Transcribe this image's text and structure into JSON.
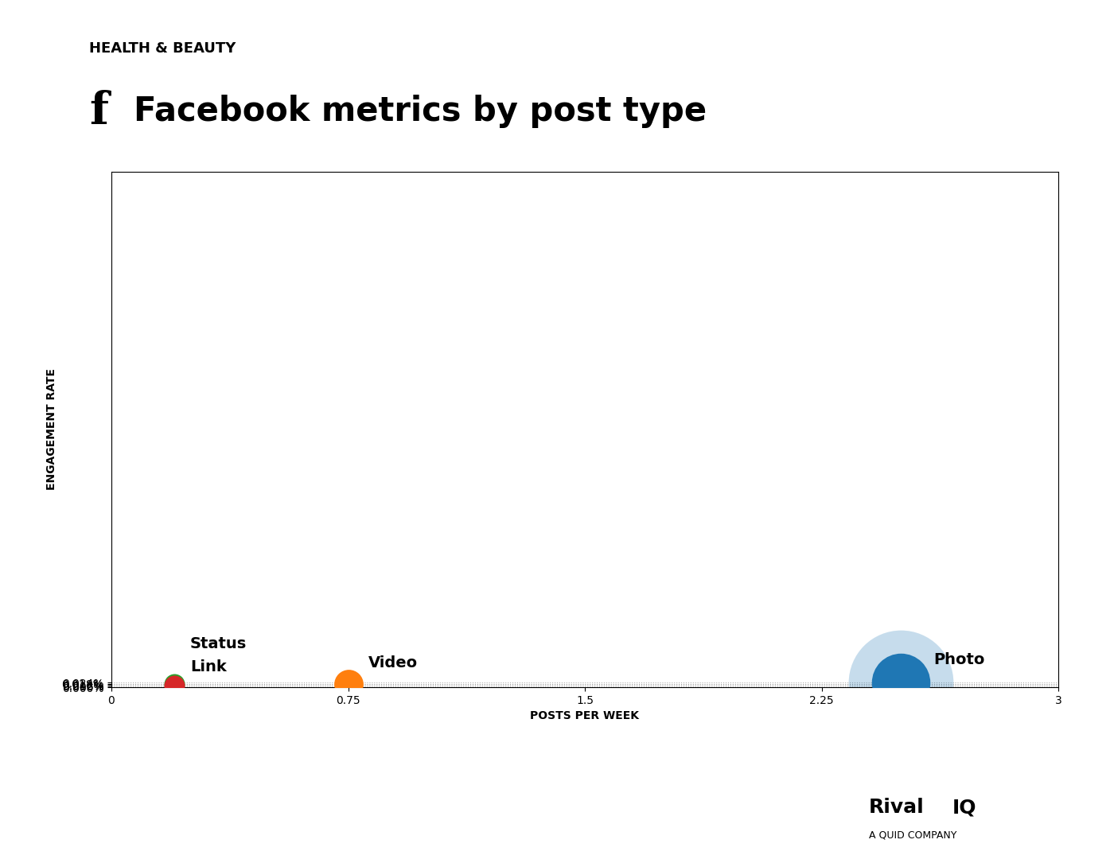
{
  "chart_data": {
    "type": "scatter",
    "title": "Facebook metrics by post type",
    "subtitle": "HEALTH & BEAUTY",
    "icon": "f",
    "x_label": "POSTS PER WEEK",
    "y_label": "ENGAGEMENT RATE",
    "point_labels": [
      "Photo",
      "Video",
      "Status",
      "Link"
    ],
    "x": [
      2.5,
      0.75,
      0.2,
      0.2
    ],
    "values": [
      0.00024,
      0.00018,
      0.000155,
      0.0001
    ],
    "sizes": [
      2800,
      700,
      350,
      350
    ],
    "halo_sizes": [
      9000,
      0,
      0,
      0
    ],
    "xlim": [
      0,
      3
    ],
    "xticks": [
      0,
      0.75,
      1.5,
      2.25,
      3
    ],
    "ylim": [
      0,
      0.028
    ],
    "yticks": [
      {
        "value": 0,
        "label": "0.000%"
      },
      {
        "value": 6e-05,
        "label": "0.006%"
      },
      {
        "value": 0.00012,
        "label": "0.012%"
      },
      {
        "value": 0.00018,
        "label": "0.018%"
      },
      {
        "value": 0.00024,
        "label": "0.024%"
      }
    ],
    "grid": "y",
    "logo": [
      "Rival",
      "IQ"
    ],
    "logo_subtitle": "A QUID COMPANY"
  }
}
